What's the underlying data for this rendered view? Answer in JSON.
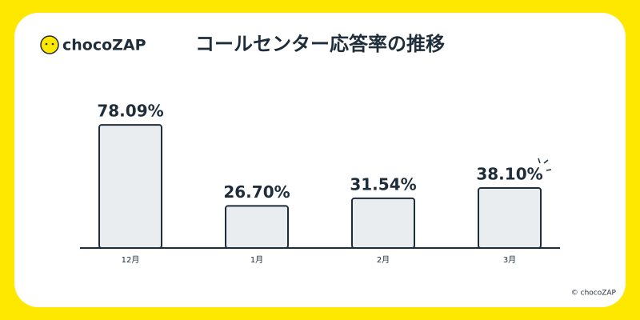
{
  "logo": "chocoZAP",
  "copyright": "© chocoZAP",
  "chart_data": {
    "type": "bar",
    "title": "コールセンター応答率の推移",
    "categories": [
      "12月",
      "1月",
      "2月",
      "3月"
    ],
    "values": [
      78.09,
      26.7,
      31.54,
      38.1
    ],
    "value_labels": [
      "78.09%",
      "26.70%",
      "31.54%",
      "38.10%"
    ],
    "color": "#e9edf0"
  }
}
